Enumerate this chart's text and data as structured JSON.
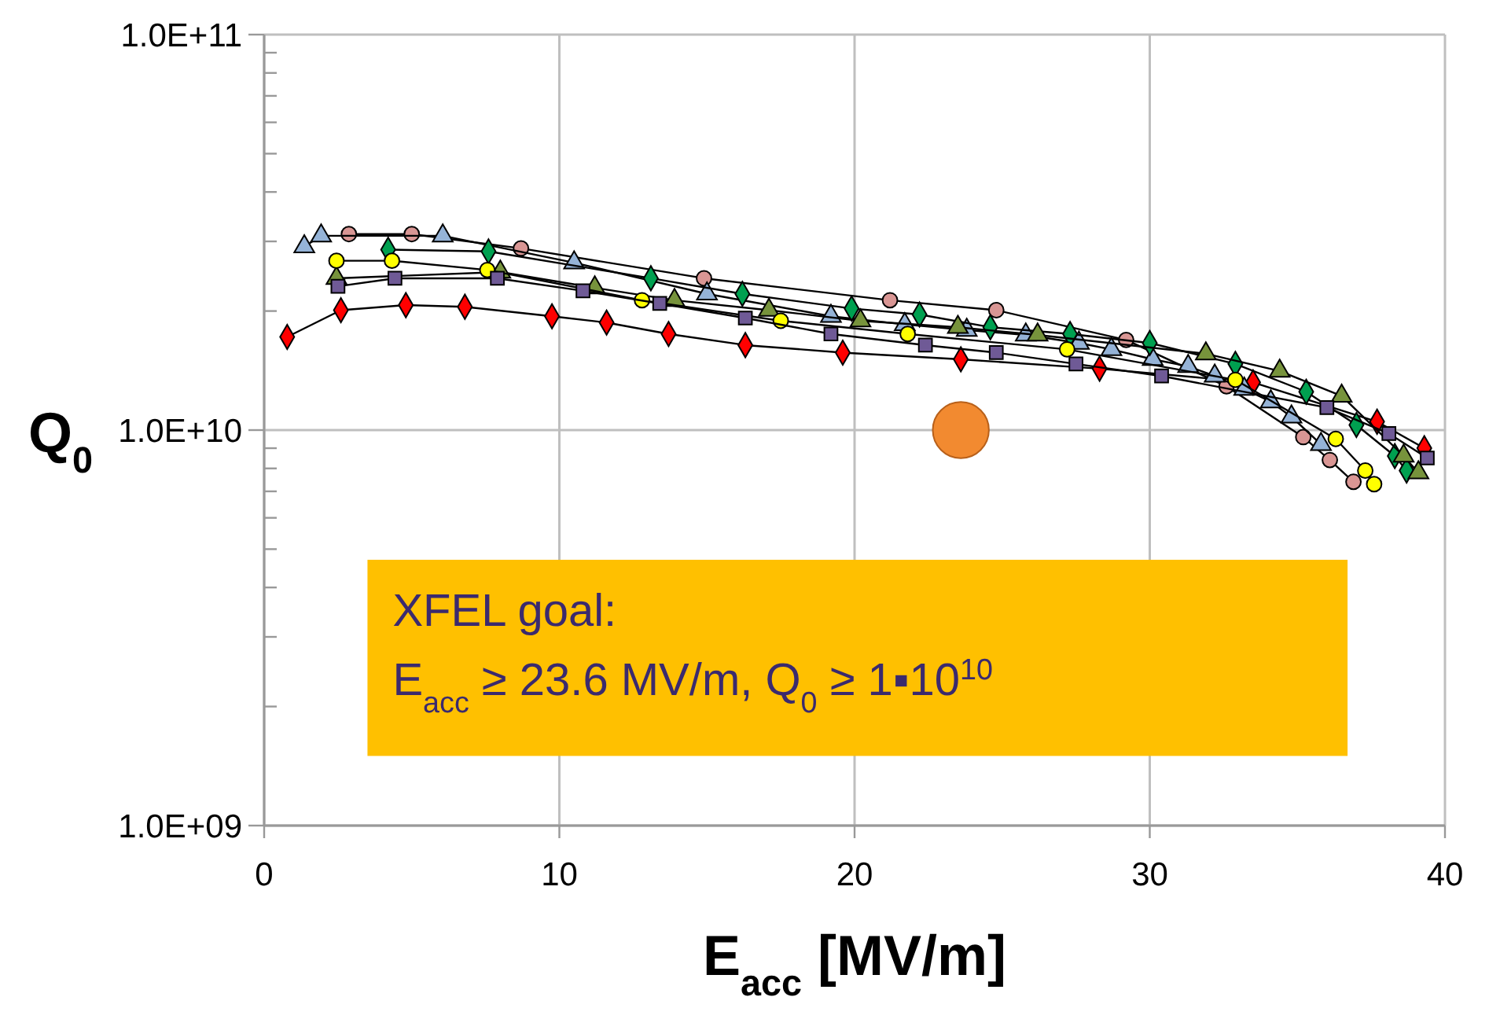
{
  "chart_data": {
    "type": "line",
    "xlabel": "E$_{acc}$ [MV/m]",
    "ylabel": "Q$_{0}$",
    "log": "y",
    "grid": true,
    "line_style": "solid",
    "xlim": [
      0,
      40
    ],
    "xticks": [
      0,
      10,
      20,
      30,
      40
    ],
    "ylim": [
      1000000000.0,
      100000000000.0
    ],
    "yticks": [
      {
        "value": 1000000000.0,
        "label": "1.0E+09"
      },
      {
        "value": 2000000000.0,
        "label": null
      },
      {
        "value": 3000000000.0,
        "label": null
      },
      {
        "value": 4000000000.0,
        "label": null
      },
      {
        "value": 5000000000.0,
        "label": null
      },
      {
        "value": 6000000000.0,
        "label": null
      },
      {
        "value": 7000000000.0,
        "label": null
      },
      {
        "value": 8000000000.0,
        "label": null
      },
      {
        "value": 9000000000.0,
        "label": null
      },
      {
        "value": 10000000000.0,
        "label": "1.0E+10"
      },
      {
        "value": 20000000000.0,
        "label": null
      },
      {
        "value": 30000000000.0,
        "label": null
      },
      {
        "value": 40000000000.0,
        "label": null
      },
      {
        "value": 50000000000.0,
        "label": null
      },
      {
        "value": 60000000000.0,
        "label": null
      },
      {
        "value": 70000000000.0,
        "label": null
      },
      {
        "value": 80000000000.0,
        "label": null
      },
      {
        "value": 90000000000.0,
        "label": null
      },
      {
        "value": 100000000000.0,
        "label": "1.0E+11"
      }
    ],
    "annotations": [
      "XFEL goal:\nE$_{acc}$ ≥ 23.6 MV/m,  Q$_{0}$ ≥ 1▪10$^{10}$"
    ],
    "series": [
      {
        "color": "#ff0000",
        "marker": "diamond",
        "x": [
          0.78,
          2.6,
          4.8,
          6.8,
          9.75,
          11.6,
          13.7,
          16.3,
          19.6,
          23.6,
          28.3,
          33.5,
          37.7,
          39.3
        ],
        "values": [
          17200000000.0,
          20100000000.0,
          20700000000.0,
          20500000000.0,
          19400000000.0,
          18700000000.0,
          17500000000.0,
          16400000000.0,
          15700000000.0,
          15100000000.0,
          14300000000.0,
          13200000000.0,
          10500000000.0,
          9000000000.0
        ]
      },
      {
        "color": "#d99694",
        "marker": "circle",
        "x": [
          2.87,
          5.0,
          8.7,
          14.9,
          21.2,
          24.8,
          29.2,
          32.6,
          35.2,
          36.1,
          36.9
        ],
        "values": [
          31300000000.0,
          31300000000.0,
          28800000000.0,
          24200000000.0,
          21300000000.0,
          20100000000.0,
          16900000000.0,
          12900000000.0,
          9600000000.0,
          8400000000.0,
          7400000000.0
        ]
      },
      {
        "color": "#95b3d7",
        "marker": "triangle",
        "x": [
          1.36,
          1.93,
          6.05,
          10.5,
          15.0,
          19.2,
          21.7,
          23.8,
          25.8,
          27.6,
          28.7,
          30.1,
          31.3,
          32.2,
          33.2,
          34.1,
          34.8,
          35.8
        ],
        "values": [
          29100000000.0,
          31000000000.0,
          31000000000.0,
          26500000000.0,
          22100000000.0,
          19400000000.0,
          18500000000.0,
          17900000000.0,
          17400000000.0,
          16600000000.0,
          16000000000.0,
          15100000000.0,
          14500000000.0,
          13700000000.0,
          12700000000.0,
          11800000000.0,
          10800000000.0,
          9200000000.0
        ]
      },
      {
        "color": "#00a050",
        "marker": "diamond",
        "x": [
          4.2,
          7.6,
          13.1,
          16.2,
          19.9,
          22.2,
          24.6,
          27.3,
          30.0,
          32.9,
          35.3,
          37.0,
          38.3,
          38.7
        ],
        "values": [
          28600000000.0,
          28300000000.0,
          24200000000.0,
          22100000000.0,
          20300000000.0,
          19600000000.0,
          18200000000.0,
          17500000000.0,
          16600000000.0,
          14700000000.0,
          12500000000.0,
          10300000000.0,
          8600000000.0,
          7900000000.0
        ]
      },
      {
        "color": "#77933c",
        "marker": "triangle",
        "x": [
          2.45,
          8.0,
          11.2,
          13.9,
          17.1,
          20.2,
          23.5,
          26.2,
          31.9,
          34.4,
          36.5,
          38.6,
          39.1
        ],
        "values": [
          24200000000.0,
          25100000000.0,
          22900000000.0,
          21300000000.0,
          20100000000.0,
          18900000000.0,
          18200000000.0,
          17400000000.0,
          15600000000.0,
          14100000000.0,
          12200000000.0,
          8600000000.0,
          7800000000.0
        ]
      },
      {
        "color": "#ffff00",
        "marker": "circle",
        "x": [
          2.45,
          4.33,
          7.56,
          12.8,
          17.5,
          21.8,
          27.2,
          32.9,
          36.3,
          37.3,
          37.6
        ],
        "values": [
          26800000000.0,
          26800000000.0,
          25400000000.0,
          21300000000.0,
          18900000000.0,
          17500000000.0,
          16000000000.0,
          13400000000.0,
          9500000000.0,
          7900000000.0,
          7300000000.0
        ]
      },
      {
        "color": "#6f5a96",
        "marker": "square",
        "x": [
          2.5,
          4.43,
          7.9,
          10.8,
          13.4,
          16.3,
          19.2,
          22.4,
          24.8,
          27.5,
          30.4,
          36.0,
          38.1,
          39.4
        ],
        "values": [
          23100000000.0,
          24200000000.0,
          24200000000.0,
          22500000000.0,
          20900000000.0,
          19200000000.0,
          17500000000.0,
          16400000000.0,
          15700000000.0,
          14700000000.0,
          13700000000.0,
          11400000000.0,
          9800000000.0,
          8500000000.0
        ]
      },
      {
        "type": "scatter",
        "color": "#f28a30",
        "marker": "circle",
        "x": [
          23.6
        ],
        "values": [
          10000000000.0
        ]
      }
    ]
  }
}
